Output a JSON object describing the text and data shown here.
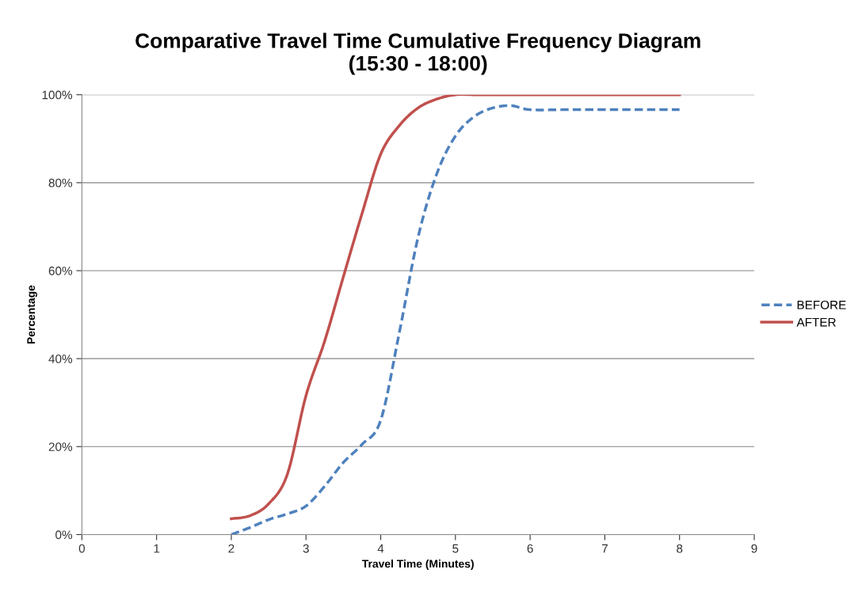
{
  "chart_data": {
    "type": "line",
    "title": "Comparative Travel Time Cumulative Frequency Diagram\n(15:30 - 18:00)",
    "xlabel": "Travel Time (Minutes)",
    "ylabel": "Percentage",
    "x": [
      2,
      2.25,
      2.5,
      2.75,
      3,
      3.25,
      3.5,
      3.75,
      4,
      4.25,
      4.5,
      4.75,
      5,
      5.25,
      5.5,
      5.75,
      6,
      6.5,
      7,
      7.5,
      8
    ],
    "series": [
      {
        "name": "BEFORE",
        "color": "#4f81bd",
        "line_style": "dashed",
        "values": [
          0,
          1.6,
          3.4,
          4.7,
          6.5,
          11,
          16.4,
          20.5,
          26,
          46,
          67.6,
          82,
          90.6,
          95,
          97,
          97.5,
          96.6,
          96.6,
          96.6,
          96.6,
          96.6
        ]
      },
      {
        "name": "AFTER",
        "color": "#c0504d",
        "line_style": "solid",
        "values": [
          3.6,
          4.3,
          7,
          13.7,
          31.6,
          44,
          58.6,
          73,
          86.5,
          93,
          97,
          99,
          100,
          100,
          100,
          100,
          100,
          100,
          100,
          100,
          100
        ]
      }
    ],
    "xlim": [
      0,
      9
    ],
    "xticks": [
      0,
      1,
      2,
      3,
      4,
      5,
      6,
      7,
      8,
      9
    ],
    "ylim": [
      0,
      100
    ],
    "yticks": [
      {
        "value": 0,
        "label": "0%"
      },
      {
        "value": 20,
        "label": "20%"
      },
      {
        "value": 40,
        "label": "40%"
      },
      {
        "value": 60,
        "label": "60%"
      },
      {
        "value": 80,
        "label": "80%"
      },
      {
        "value": 100,
        "label": "100%"
      }
    ],
    "grid": "y",
    "legend": "right",
    "marker": "none"
  }
}
